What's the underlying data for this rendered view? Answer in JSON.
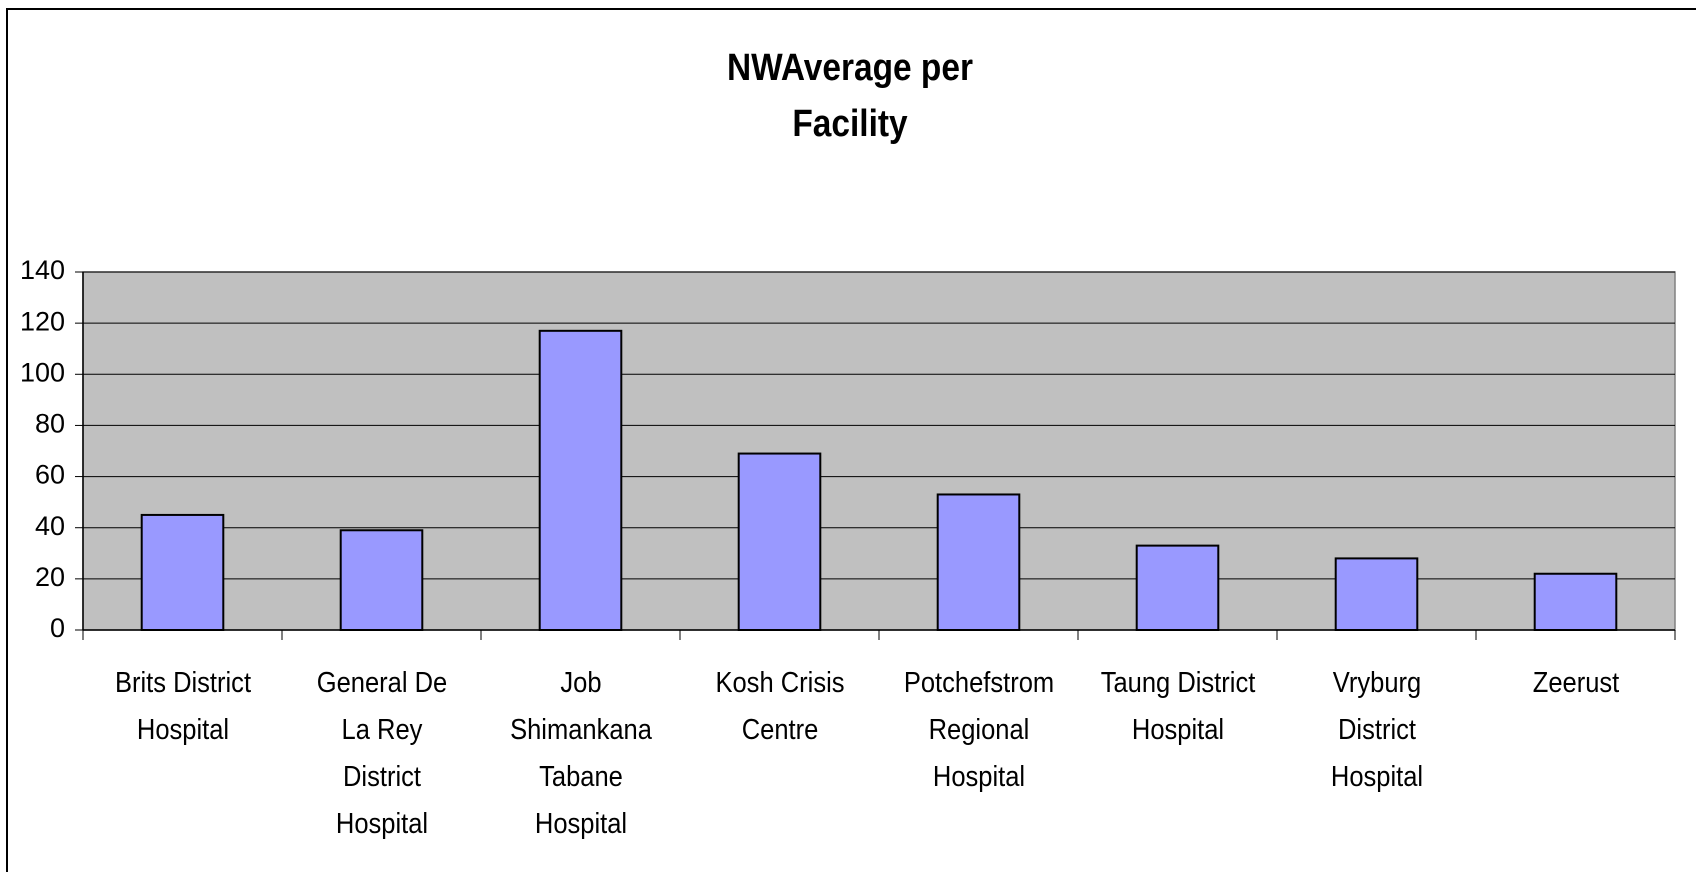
{
  "chart_data": {
    "type": "bar",
    "title": "NWAverage per Facility",
    "categories": [
      "Brits District Hospital",
      "General De La Rey District Hospital",
      "Job Shimankana Tabane Hospital",
      "Kosh Crisis Centre",
      "Potchefstrom Regional Hospital",
      "Taung District Hospital",
      "Vryburg District Hospital",
      "Zeerust"
    ],
    "values": [
      45,
      39,
      117,
      69,
      53,
      33,
      28,
      22
    ],
    "color": "#9999ff",
    "ylim": [
      0,
      140
    ],
    "yticks": [
      0,
      20,
      40,
      60,
      80,
      100,
      120,
      140
    ],
    "grid": true
  }
}
